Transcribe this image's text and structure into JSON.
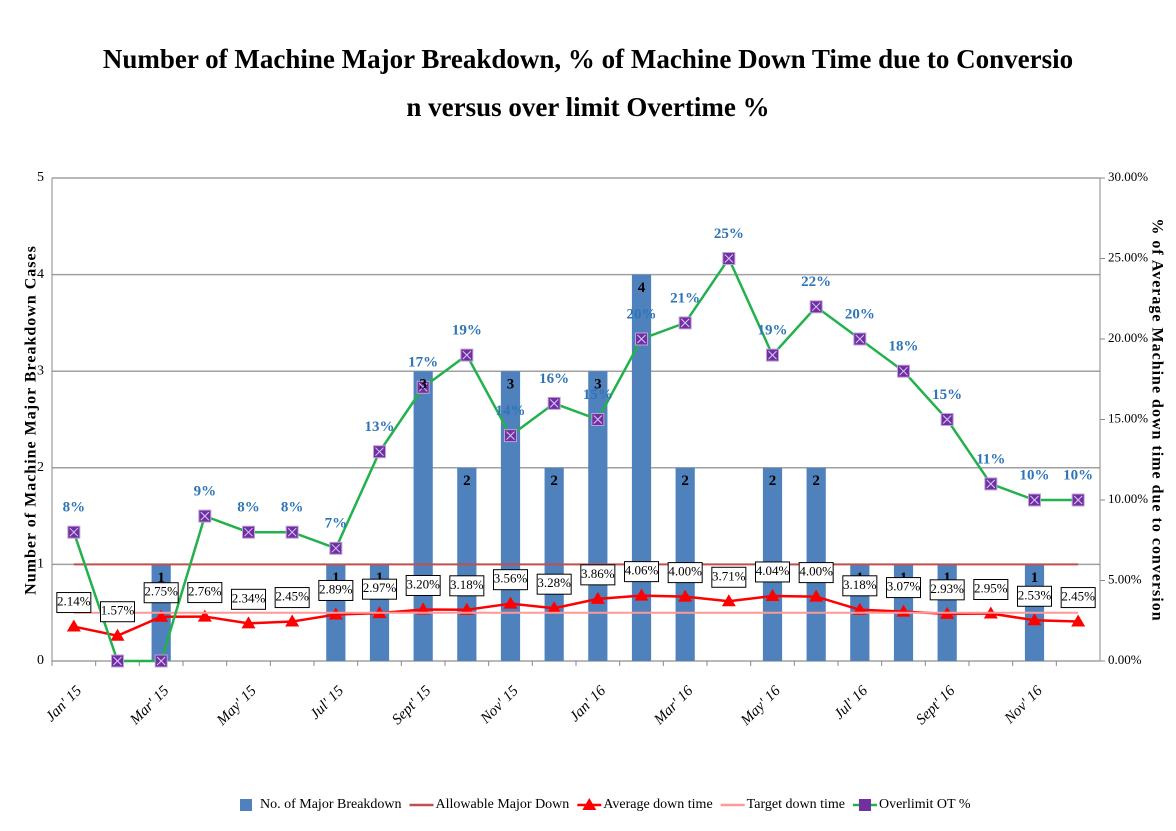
{
  "chart_data": {
    "type": "combo",
    "title": [
      "Number of Machine Major Breakdown, % of Machine Down Time due to Conversio",
      "n versus over limit Overtime %"
    ],
    "y_label": "Number of Machine Major Breakdown Cases",
    "y2_label": "% of Average Machine down time due to conversion",
    "categories": [
      "Jan' 15",
      null,
      "Mar' 15",
      null,
      "May' 15",
      null,
      "Jul' 15",
      null,
      "Sept' 15",
      null,
      "Nov' 15",
      null,
      "Jan' 16",
      null,
      "Mar' 16",
      null,
      "May' 16",
      null,
      "Jul' 16",
      null,
      "Sept' 16",
      null,
      "Nov' 16",
      null
    ],
    "ylim": [
      0,
      5
    ],
    "yticks": [
      0,
      1,
      2,
      3,
      4,
      5
    ],
    "y2lim": [
      0,
      30
    ],
    "y2ticks": [
      {
        "value": 0,
        "label": "0.00%"
      },
      {
        "value": 5,
        "label": "5.00%"
      },
      {
        "value": 10,
        "label": "10.00%"
      },
      {
        "value": 15,
        "label": "15.00%"
      },
      {
        "value": 20,
        "label": "20.00%"
      },
      {
        "value": 25,
        "label": "25.00%"
      },
      {
        "value": 30,
        "label": "30.00%"
      }
    ],
    "grid": true,
    "legend": "bottom",
    "series": [
      {
        "name": "No. of Major Breakdown",
        "type": "bar",
        "color": "#4f81bd",
        "values": [
          0,
          0,
          1,
          0,
          0,
          0,
          1,
          1,
          3,
          2,
          3,
          2,
          3,
          4,
          2,
          0,
          2,
          2,
          1,
          1,
          1,
          0,
          1,
          0
        ]
      },
      {
        "name": "Allowable Major Down",
        "type": "line",
        "color": "#c0504d",
        "values": [
          1,
          1,
          1,
          1,
          1,
          1,
          1,
          1,
          1,
          1,
          1,
          1,
          1,
          1,
          1,
          1,
          1,
          1,
          1,
          1,
          1,
          1,
          1,
          1
        ]
      },
      {
        "name": "Average down time",
        "type": "line",
        "axis": "y2",
        "color": "#ff0000",
        "marker": "triangle",
        "values": [
          2.14,
          1.57,
          2.75,
          2.76,
          2.34,
          2.45,
          2.89,
          2.97,
          3.2,
          3.18,
          3.56,
          3.28,
          3.86,
          4.06,
          4.0,
          3.71,
          4.04,
          4.0,
          3.18,
          3.07,
          2.93,
          2.95,
          2.53,
          2.45
        ],
        "value_labels": [
          "2.14%",
          "1.57%",
          "2.75%",
          "2.76%",
          "2.34%",
          "2.45%",
          "2.89%",
          "2.97%",
          "3.20%",
          "3.18%",
          "3.56%",
          "3.28%",
          "3.86%",
          "4.06%",
          "4.00%",
          "3.71%",
          "4.04%",
          "4.00%",
          "3.18%",
          "3.07%",
          "2.93%",
          "2.95%",
          "2.53%",
          "2.45%"
        ]
      },
      {
        "name": "Target down time",
        "type": "line",
        "axis": "y2",
        "color": "#ff9999",
        "values": [
          3,
          3,
          3,
          3,
          3,
          3,
          3,
          3,
          3,
          3,
          3,
          3,
          3,
          3,
          3,
          3,
          3,
          3,
          3,
          3,
          3,
          3,
          3,
          3
        ]
      },
      {
        "name": "Overlimit OT %",
        "type": "line",
        "axis": "y2",
        "color": "#22b14c",
        "marker": "square",
        "marker_color": "#7030a0",
        "values": [
          8,
          0,
          0,
          9,
          8,
          8,
          7,
          13,
          17,
          19,
          14,
          16,
          15,
          20,
          21,
          25,
          19,
          22,
          20,
          18,
          15,
          11,
          10,
          10
        ],
        "value_labels": [
          "8%",
          null,
          null,
          "9%",
          "8%",
          "8%",
          "7%",
          "13%",
          "17%",
          "19%",
          "14%",
          "16%",
          "15%",
          "20%",
          "21%",
          "25%",
          "19%",
          "22%",
          "20%",
          "18%",
          "15%",
          "11%",
          "10%",
          "10%"
        ]
      }
    ]
  }
}
